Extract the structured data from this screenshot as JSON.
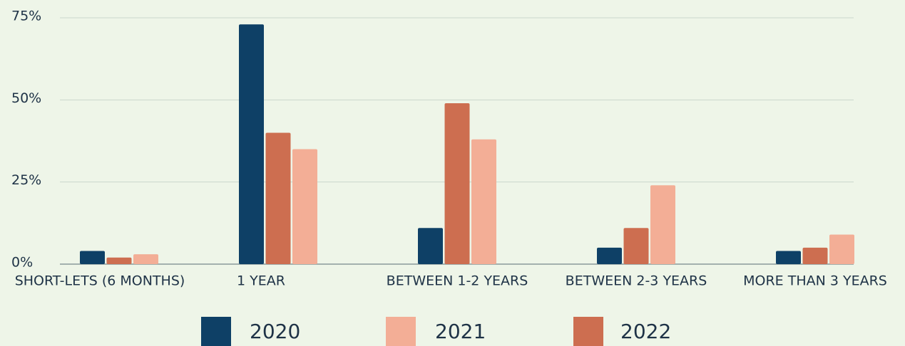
{
  "chart_data": {
    "type": "bar",
    "categories": [
      "SHORT-LETS (6 MONTHS)",
      "1 YEAR",
      "BETWEEN 1-2 YEARS",
      "BETWEEN 2-3 YEARS",
      "MORE THAN 3 YEARS"
    ],
    "series": [
      {
        "name": "2020",
        "color": "#0e4066",
        "values": [
          4,
          73,
          11,
          5,
          4
        ]
      },
      {
        "name": "2022",
        "color": "#cd6e50",
        "values": [
          2,
          40,
          49,
          11,
          5
        ]
      },
      {
        "name": "2021",
        "color": "#f3ae96",
        "values": [
          3,
          35,
          38,
          24,
          9
        ]
      }
    ],
    "ylim": [
      0,
      75
    ],
    "yticks": [
      {
        "value": 0,
        "label": "0%"
      },
      {
        "value": 25,
        "label": "25%"
      },
      {
        "value": 50,
        "label": "50%"
      },
      {
        "value": 75,
        "label": "75%"
      }
    ],
    "grid": true,
    "legend": "bottom"
  }
}
